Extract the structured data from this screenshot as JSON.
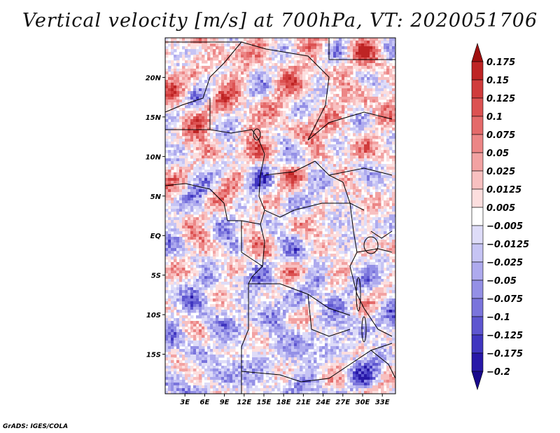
{
  "title": "Vertical velocity [m/s] at 700hPa, VT: 2020051706",
  "credit": "GrADS: IGES/COLA",
  "chart_data": {
    "type": "heatmap",
    "variable": "Vertical velocity",
    "units": "m/s",
    "level": "700hPa",
    "valid_time": "2020051706",
    "lon_range": [
      0,
      35
    ],
    "lat_range": [
      -20,
      25
    ],
    "x_ticks": [
      "3E",
      "6E",
      "9E",
      "12E",
      "15E",
      "18E",
      "21E",
      "24E",
      "27E",
      "30E",
      "33E"
    ],
    "x_tick_values": [
      3,
      6,
      9,
      12,
      15,
      18,
      21,
      24,
      27,
      30,
      33
    ],
    "y_ticks": [
      "20N",
      "15N",
      "10N",
      "5N",
      "EQ",
      "5S",
      "10S",
      "15S"
    ],
    "y_tick_values": [
      20,
      15,
      10,
      5,
      0,
      -5,
      -10,
      -15
    ],
    "colorbar": {
      "labels": [
        "0.175",
        "0.15",
        "0.125",
        "0.1",
        "0.075",
        "0.05",
        "0.025",
        "0.0125",
        "0.005",
        "−0.005",
        "−0.0125",
        "−0.025",
        "−0.05",
        "−0.075",
        "−0.1",
        "−0.125",
        "−0.175",
        "−0.2"
      ],
      "colors": [
        "#a01010",
        "#be2424",
        "#d03c3c",
        "#dc5252",
        "#e46a6a",
        "#ec8686",
        "#f2a2a2",
        "#f8c0c0",
        "#fcdede",
        "#ffffff",
        "#dedcf8",
        "#c6c4f4",
        "#aeaaee",
        "#9490e6",
        "#7a74dc",
        "#5e56d0",
        "#4036c0",
        "#2818a8",
        "#18088c"
      ]
    }
  }
}
